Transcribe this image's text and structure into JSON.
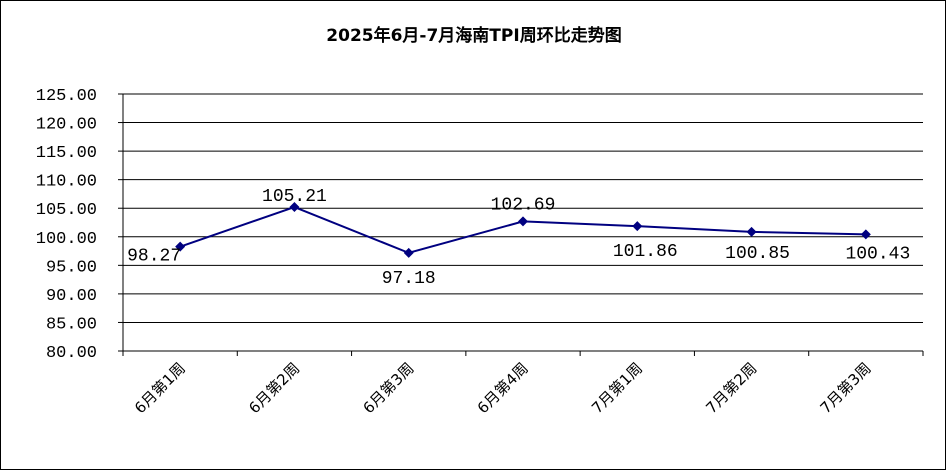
{
  "chart_data": {
    "type": "line",
    "title": "2025年6月-7月海南TPI周环比走势图",
    "categories": [
      "6月第1周",
      "6月第2周",
      "6月第3周",
      "6月第4周",
      "7月第1周",
      "7月第2周",
      "7月第3周"
    ],
    "series": [
      {
        "values": [
          98.27,
          105.21,
          97.18,
          102.69,
          101.86,
          100.85,
          100.43
        ],
        "data_labels": [
          "98.27",
          "105.21",
          "97.18",
          "102.69",
          "101.86",
          "100.85",
          "100.43"
        ],
        "color": "#000080",
        "marker": "diamond"
      }
    ],
    "ylim": [
      80,
      125
    ],
    "y_ticks": [
      "125.00",
      "120.00",
      "115.00",
      "110.00",
      "105.00",
      "100.00",
      "95.00",
      "90.00",
      "85.00",
      "80.00"
    ],
    "grid": true,
    "legend": "none"
  }
}
